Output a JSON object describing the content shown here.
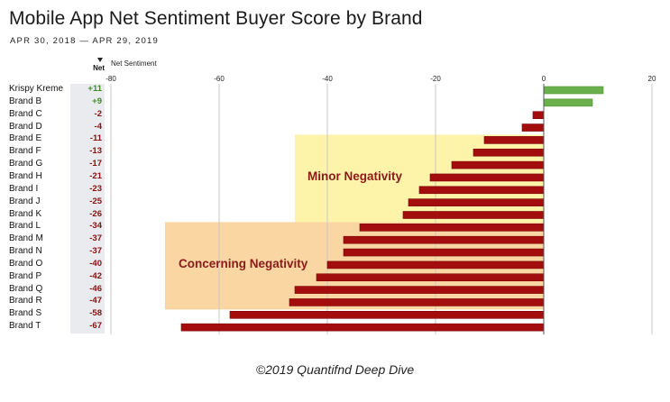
{
  "title": "Mobile App Net Sentiment Buyer Score by Brand",
  "subtitle": "APR 30, 2018 — APR 29, 2019",
  "footer": "©2019 Quantifnd Deep Dive",
  "net_column": {
    "header": "Net",
    "sort_icon": "sort-descending-icon"
  },
  "colors": {
    "positive": "#6ab04c",
    "negative": "#a30d0d",
    "positive_text": "#3f8a22",
    "negative_text": "#8b0f0f",
    "minor_band": "#fdf3a9",
    "concerning_band": "#fad6a3",
    "band_text": "#8b1a1a"
  },
  "chart_data": {
    "type": "bar",
    "orientation": "horizontal",
    "title": "Mobile App Net Sentiment Buyer Score by Brand",
    "subtitle": "APR 30, 2018 — APR 29, 2019",
    "xlabel": "Net Sentiment",
    "ylabel": "",
    "xlim": [
      -80,
      20
    ],
    "xticks": [
      -80,
      -60,
      -40,
      -20,
      0,
      20
    ],
    "xtick_labels": [
      "-80",
      "-60",
      "-40",
      "-20",
      "0",
      "20"
    ],
    "grid": true,
    "legend": "none",
    "categories": [
      "Krispy Kreme",
      "Brand B",
      "Brand C",
      "Brand D",
      "Brand E",
      "Brand F",
      "Brand G",
      "Brand H",
      "Brand I",
      "Brand J",
      "Brand K",
      "Brand L",
      "Brand M",
      "Brand N",
      "Brand O",
      "Brand P",
      "Brand Q",
      "Brand R",
      "Brand S",
      "Brand T"
    ],
    "values": [
      11,
      9,
      -2,
      -4,
      -11,
      -13,
      -17,
      -21,
      -23,
      -25,
      -26,
      -34,
      -37,
      -37,
      -40,
      -42,
      -46,
      -47,
      -58,
      -67
    ],
    "value_labels": [
      "+11",
      "+9",
      "-2",
      "-4",
      "-11",
      "-13",
      "-17",
      "-21",
      "-23",
      "-25",
      "-26",
      "-34",
      "-37",
      "-37",
      "-40",
      "-42",
      "-46",
      "-47",
      "-58",
      "-67"
    ],
    "annotations": [
      {
        "label": "Minor Negativity",
        "x_range": [
          -46,
          0
        ],
        "rows": [
          "Brand E",
          "Brand K"
        ]
      },
      {
        "label": "Concerning Negativity",
        "x_range": [
          -70,
          0
        ],
        "rows": [
          "Brand L",
          "Brand R"
        ]
      }
    ]
  }
}
